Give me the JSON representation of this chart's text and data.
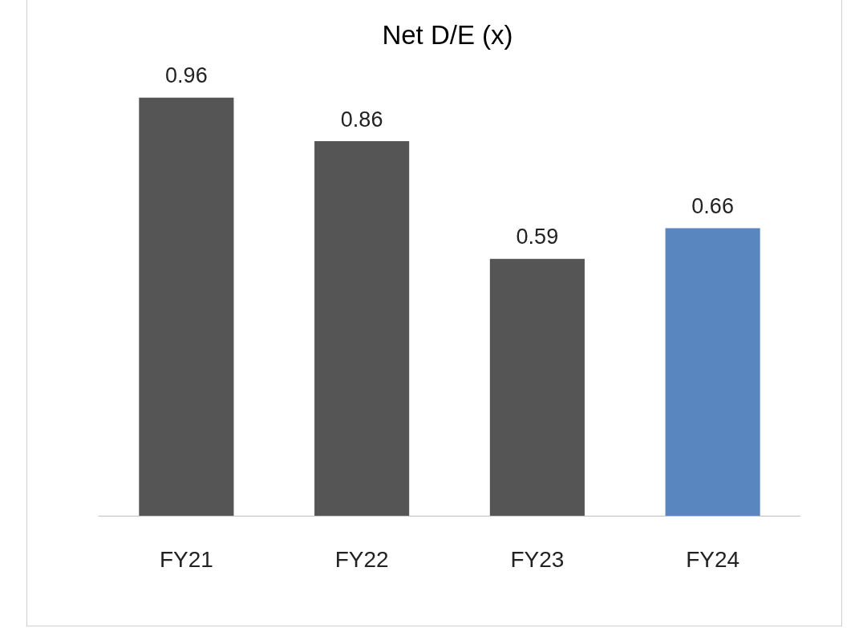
{
  "chart_data": {
    "type": "bar",
    "title": "Net D/E (x)",
    "categories": [
      "FY21",
      "FY22",
      "FY23",
      "FY24"
    ],
    "values": [
      0.96,
      0.86,
      0.59,
      0.66
    ],
    "colors": [
      "#555555",
      "#555555",
      "#555555",
      "#5a86c0"
    ],
    "data_labels": true
  }
}
